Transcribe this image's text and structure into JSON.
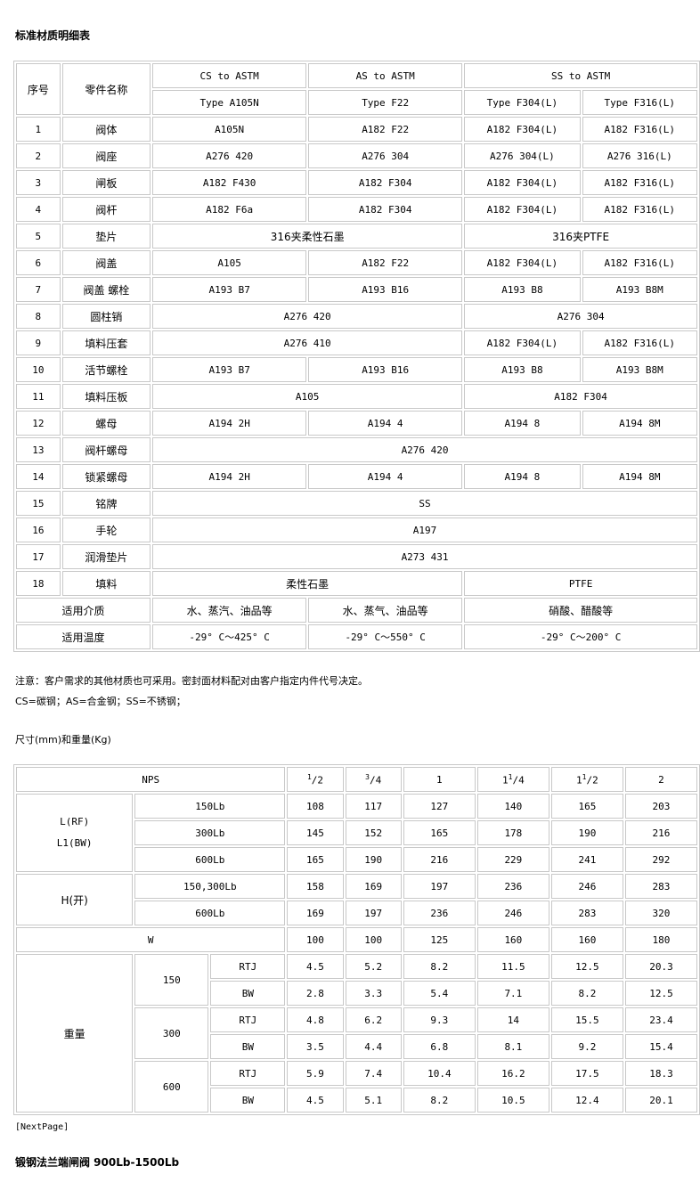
{
  "title": "标准材质明细表",
  "materials": {
    "header": {
      "no": "序号",
      "part": "零件名称",
      "groups": [
        "CS to ASTM",
        "AS to ASTM",
        "SS to ASTM"
      ],
      "types": [
        "Type A105N",
        "Type F22",
        "Type F304(L)",
        "Type F316(L)"
      ]
    },
    "rows": [
      [
        "1",
        "阀体",
        "A105N",
        "A182 F22",
        "A182 F304(L)",
        "A182 F316(L)"
      ],
      [
        "2",
        "阀座",
        "A276 420",
        "A276 304",
        "A276 304(L)",
        "A276 316(L)"
      ],
      [
        "3",
        "闸板",
        "A182 F430",
        "A182 F304",
        "A182 F304(L)",
        "A182 F316(L)"
      ],
      [
        "4",
        "阀杆",
        "A182 F6a",
        "A182 F304",
        "A182 F304(L)",
        "A182 F316(L)"
      ],
      [
        "5",
        "垫片",
        "316夹柔性石墨",
        "316夹PTFE"
      ],
      [
        "6",
        "阀盖",
        "A105",
        "A182 F22",
        "A182 F304(L)",
        "A182 F316(L)"
      ],
      [
        "7",
        "阀盖 螺栓",
        "A193 B7",
        "A193 B16",
        "A193 B8",
        "A193 B8M"
      ],
      [
        "8",
        "圆柱销",
        "A276 420",
        "A276 304"
      ],
      [
        "9",
        "填料压套",
        "A276 410",
        "A182 F304(L)",
        "A182 F316(L)"
      ],
      [
        "10",
        "活节螺栓",
        "A193 B7",
        "A193 B16",
        "A193 B8",
        "A193 B8M"
      ],
      [
        "11",
        "填料压板",
        "A105",
        "A182 F304"
      ],
      [
        "12",
        "螺母",
        "A194 2H",
        "A194 4",
        "A194 8",
        "A194 8M"
      ],
      [
        "13",
        "阀杆螺母",
        "A276 420"
      ],
      [
        "14",
        "锁紧螺母",
        "A194 2H",
        "A194 4",
        "A194 8",
        "A194 8M"
      ],
      [
        "15",
        "铭牌",
        "SS"
      ],
      [
        "16",
        "手轮",
        "A197"
      ],
      [
        "17",
        "润滑垫片",
        "A273 431"
      ],
      [
        "18",
        "填料",
        "柔性石墨",
        "PTFE"
      ],
      [
        "适用介质",
        "水、蒸汽、油品等",
        "水、蒸气、油品等",
        "硝酸、醋酸等"
      ],
      [
        "适用温度",
        "-29° C～425° C",
        "-29° C～550° C",
        "-29° C～200° C"
      ]
    ]
  },
  "notes": [
    "注意：客户需求的其他材质也可采用。密封面材料配对由客户指定内件代号决定。",
    "CS=碳钢；AS=合金钢；SS=不锈钢；"
  ],
  "dims_title": "尺寸(mm)和重量(Kg)",
  "dimensions": {
    "nps_label": "NPS",
    "nps": [
      [
        "",
        "1",
        "2"
      ],
      [
        "",
        "3",
        "4"
      ],
      [
        "1",
        "",
        ""
      ],
      [
        "1",
        "1",
        "4"
      ],
      [
        "1",
        "1",
        "2"
      ],
      [
        "2",
        "",
        ""
      ]
    ],
    "L": {
      "label1": "L(RF)",
      "label2": "L1(BW)",
      "rows": [
        {
          "class": "150Lb",
          "values": [
            "108",
            "117",
            "127",
            "140",
            "165",
            "203"
          ]
        },
        {
          "class": "300Lb",
          "values": [
            "145",
            "152",
            "165",
            "178",
            "190",
            "216"
          ]
        },
        {
          "class": "600Lb",
          "values": [
            "165",
            "190",
            "216",
            "229",
            "241",
            "292"
          ]
        }
      ]
    },
    "H": {
      "label": "H(开)",
      "rows": [
        {
          "class": "150,300Lb",
          "values": [
            "158",
            "169",
            "197",
            "236",
            "246",
            "283"
          ]
        },
        {
          "class": "600Lb",
          "values": [
            "169",
            "197",
            "236",
            "246",
            "283",
            "320"
          ]
        }
      ]
    },
    "W": {
      "label": "W",
      "values": [
        "100",
        "100",
        "125",
        "160",
        "160",
        "180"
      ]
    },
    "weight": {
      "label": "重量",
      "groups": [
        {
          "class": "150",
          "rows": [
            {
              "end": "RTJ",
              "values": [
                "4.5",
                "5.2",
                "8.2",
                "11.5",
                "12.5",
                "20.3"
              ]
            },
            {
              "end": "BW",
              "values": [
                "2.8",
                "3.3",
                "5.4",
                "7.1",
                "8.2",
                "12.5"
              ]
            }
          ]
        },
        {
          "class": "300",
          "rows": [
            {
              "end": "RTJ",
              "values": [
                "4.8",
                "6.2",
                "9.3",
                "14",
                "15.5",
                "23.4"
              ]
            },
            {
              "end": "BW",
              "values": [
                "3.5",
                "4.4",
                "6.8",
                "8.1",
                "9.2",
                "15.4"
              ]
            }
          ]
        },
        {
          "class": "600",
          "rows": [
            {
              "end": "RTJ",
              "values": [
                "5.9",
                "7.4",
                "10.4",
                "16.2",
                "17.5",
                "18.3"
              ]
            },
            {
              "end": "BW",
              "values": [
                "4.5",
                "5.1",
                "8.2",
                "10.5",
                "12.4",
                "20.1"
              ]
            }
          ]
        }
      ]
    }
  },
  "next_page": "[NextPage]",
  "footer_title": "锻钢法兰端闸阀 900Lb-1500Lb"
}
